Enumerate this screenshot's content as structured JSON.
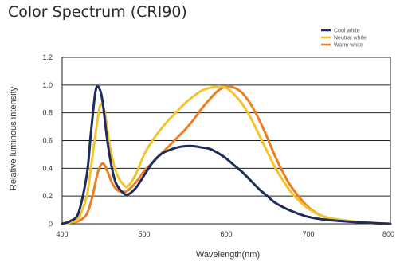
{
  "chart_data": {
    "type": "line",
    "title": "Color Spectrum (CRI90)",
    "xlabel": "Wavelength(nm)",
    "ylabel": "Relative luminous intensity",
    "xlim": [
      400,
      800
    ],
    "ylim": [
      0,
      1.2
    ],
    "xticks": [
      "400",
      "500",
      "600",
      "700",
      "800"
    ],
    "yticks": [
      "0",
      "0.2",
      "0.4",
      "0.6",
      "0.8",
      "1.0",
      "1.2"
    ],
    "grid": "horizontal",
    "legend_position": "top-right",
    "series": [
      {
        "name": "Cool white",
        "color": "#1f2d5c",
        "x": [
          400,
          410,
          420,
          430,
          435,
          440,
          443,
          447,
          450,
          455,
          460,
          465,
          470,
          475,
          480,
          490,
          500,
          510,
          520,
          530,
          540,
          550,
          560,
          570,
          580,
          590,
          600,
          610,
          620,
          630,
          640,
          650,
          660,
          680,
          700,
          720,
          750,
          780,
          800
        ],
        "y": [
          0.0,
          0.02,
          0.08,
          0.35,
          0.65,
          0.93,
          0.99,
          0.95,
          0.85,
          0.6,
          0.42,
          0.3,
          0.25,
          0.22,
          0.21,
          0.26,
          0.35,
          0.44,
          0.5,
          0.53,
          0.55,
          0.56,
          0.56,
          0.55,
          0.54,
          0.51,
          0.47,
          0.42,
          0.37,
          0.31,
          0.25,
          0.2,
          0.15,
          0.09,
          0.05,
          0.03,
          0.015,
          0.005,
          0.0
        ]
      },
      {
        "name": "Neutral white",
        "color": "#f5c42a",
        "x": [
          400,
          410,
          420,
          430,
          435,
          440,
          445,
          448,
          452,
          457,
          462,
          468,
          475,
          480,
          490,
          500,
          510,
          520,
          530,
          540,
          550,
          560,
          570,
          580,
          590,
          600,
          610,
          620,
          630,
          640,
          650,
          660,
          680,
          700,
          720,
          750,
          780,
          800
        ],
        "y": [
          0.0,
          0.01,
          0.04,
          0.2,
          0.4,
          0.62,
          0.82,
          0.86,
          0.8,
          0.6,
          0.45,
          0.34,
          0.28,
          0.27,
          0.36,
          0.5,
          0.6,
          0.68,
          0.75,
          0.81,
          0.87,
          0.92,
          0.96,
          0.98,
          0.99,
          0.98,
          0.93,
          0.86,
          0.76,
          0.64,
          0.52,
          0.4,
          0.22,
          0.11,
          0.05,
          0.02,
          0.005,
          0.0
        ]
      },
      {
        "name": "Warm white",
        "color": "#ef7d22",
        "x": [
          400,
          410,
          420,
          430,
          437,
          443,
          448,
          452,
          457,
          462,
          468,
          475,
          480,
          490,
          500,
          510,
          520,
          530,
          540,
          550,
          560,
          570,
          580,
          590,
          600,
          610,
          620,
          630,
          640,
          650,
          660,
          670,
          680,
          700,
          720,
          750,
          780,
          800
        ],
        "y": [
          0.0,
          0.01,
          0.02,
          0.07,
          0.2,
          0.36,
          0.43,
          0.42,
          0.35,
          0.28,
          0.24,
          0.23,
          0.24,
          0.3,
          0.38,
          0.44,
          0.5,
          0.56,
          0.62,
          0.68,
          0.75,
          0.83,
          0.9,
          0.96,
          0.99,
          0.98,
          0.94,
          0.86,
          0.75,
          0.62,
          0.48,
          0.36,
          0.26,
          0.12,
          0.05,
          0.02,
          0.005,
          0.0
        ]
      }
    ]
  }
}
